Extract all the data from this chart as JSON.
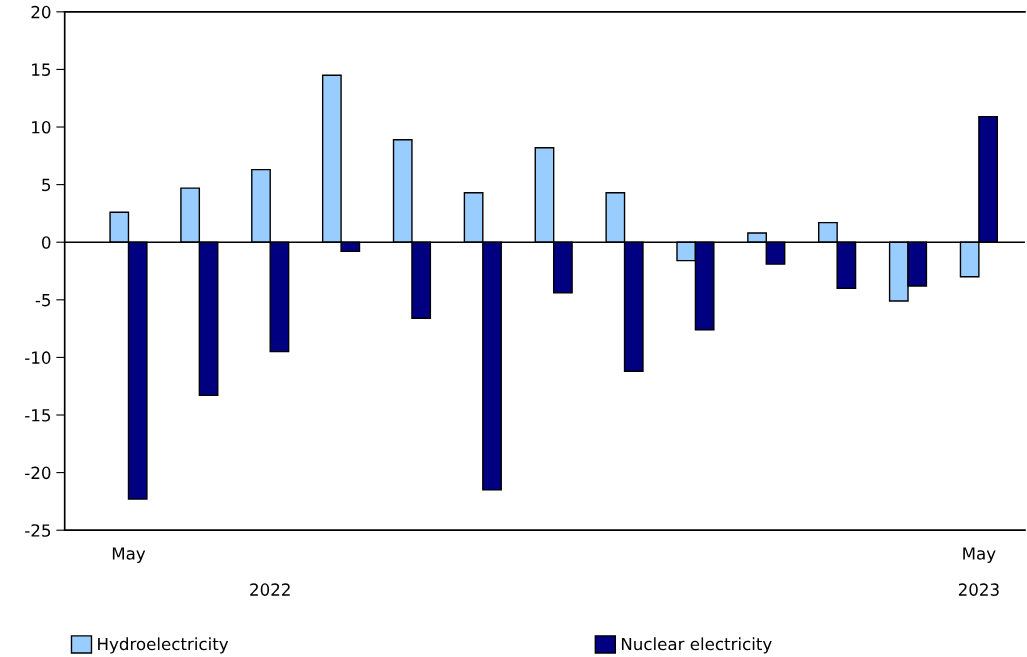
{
  "chart_data": {
    "type": "bar",
    "categories": [
      "May",
      null,
      null,
      null,
      null,
      null,
      null,
      null,
      null,
      null,
      null,
      null,
      "May"
    ],
    "series": [
      {
        "name": "Hydroelectricity",
        "color": "#99ccff",
        "values": [
          2.6,
          4.7,
          6.3,
          14.5,
          8.9,
          4.3,
          8.2,
          4.3,
          -1.6,
          0.8,
          1.7,
          -5.1,
          -3.0
        ]
      },
      {
        "name": "Nuclear electricity",
        "color": "#000080",
        "values": [
          -22.3,
          -13.3,
          -9.5,
          -0.8,
          -6.6,
          -21.5,
          -4.4,
          -11.2,
          -7.6,
          -1.9,
          -4.0,
          -3.8,
          10.9
        ]
      }
    ],
    "ylim": [
      -25,
      20
    ],
    "yticks": [
      -25,
      -20,
      -15,
      -10,
      -5,
      0,
      5,
      10,
      15,
      20
    ],
    "annotations": [
      "2022",
      "2023"
    ],
    "legend": "bottom"
  }
}
